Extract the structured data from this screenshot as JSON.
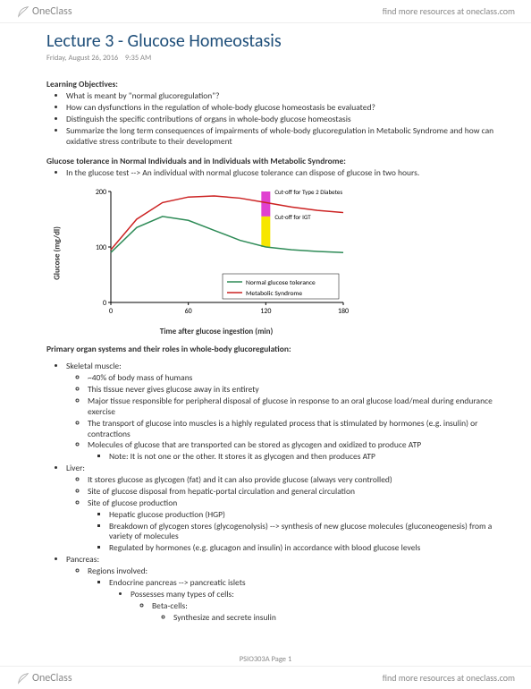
{
  "brand": {
    "name": "OneClass",
    "tagline": "find more resources at oneclass.com"
  },
  "page": {
    "title": "Lecture 3 - Glucose Homeostasis",
    "date": "Friday, August 26, 2016",
    "time": "9:35 AM",
    "footer_page": "PSIO303A Page 1"
  },
  "objectives": {
    "heading": "Learning Objectives:",
    "items": [
      "What is meant by \"normal glucoregulation\"?",
      "How can dysfunctions in the regulation of whole-body glucose homeostasis be evaluated?",
      "Distinguish the specific contributions of organs in whole-body glucose homeostasis",
      "Summarize the long term consequences of impairments of whole-body glucoregulation in Metabolic Syndrome and how can oxidative stress contribute to their development"
    ]
  },
  "tolerance": {
    "heading": "Glucose tolerance in Normal Individuals and in Individuals with Metabolic Syndrome:",
    "bullet": "In the glucose test --> An individual with normal glucose tolerance can dispose of glucose in two hours."
  },
  "chart": {
    "type": "line",
    "xlabel": "Time after glucose ingestion (min)",
    "ylabel": "Glucose (mg/dl)",
    "xlim": [
      0,
      180
    ],
    "ylim": [
      0,
      200
    ],
    "xticks": [
      0,
      60,
      120,
      180
    ],
    "yticks": [
      0,
      100,
      200
    ],
    "background_color": "#ffffff",
    "axis_color": "#000000",
    "tick_fontsize": 8,
    "label_fontsize": 9,
    "series": [
      {
        "name": "Normal glucose tolerance",
        "color": "#2e8b57",
        "linewidth": 1.5,
        "x": [
          0,
          20,
          40,
          60,
          80,
          100,
          120,
          140,
          160,
          180
        ],
        "y": [
          90,
          135,
          155,
          148,
          130,
          112,
          100,
          95,
          92,
          90
        ]
      },
      {
        "name": "Metabolic Syndrome",
        "color": "#cc2222",
        "linewidth": 1.5,
        "x": [
          0,
          20,
          40,
          60,
          80,
          100,
          120,
          140,
          160,
          180
        ],
        "y": [
          95,
          150,
          180,
          190,
          192,
          188,
          180,
          172,
          166,
          162
        ]
      }
    ],
    "bars": [
      {
        "label": "Cut-off for Type 2 Diabetes",
        "x": 120,
        "y0": 155,
        "y1": 200,
        "width": 10,
        "color": "#e040d0",
        "label_fontsize": 7,
        "label_color": "#000000"
      },
      {
        "label": "Cut-off for IGT",
        "x": 120,
        "y0": 100,
        "y1": 155,
        "width": 10,
        "color": "#f7e600",
        "label_fontsize": 7,
        "label_color": "#000000"
      }
    ],
    "legend": {
      "fontsize": 7.5,
      "position": "inside-lower-right",
      "border_color": "#000000"
    }
  },
  "organs": {
    "heading": "Primary organ systems and their roles in whole-body glucoregulation:",
    "skeletal": {
      "label": "Skeletal muscle:",
      "items": [
        "~40% of body mass of humans",
        "This tissue never gives glucose away in its entirety",
        "Major tissue responsible for peripheral disposal of glucose in response to an oral glucose load/meal during endurance exercise",
        "The transport of glucose into muscles is a highly regulated process that is stimulated by hormones (e.g. insulin) or contractions",
        "Molecules of glucose that are transported can be stored as glycogen and oxidized to produce ATP"
      ],
      "note": "Note: It is not one or the other. It stores it as glycogen and then produces ATP"
    },
    "liver": {
      "label": "Liver:",
      "items": [
        "It stores glucose as glycogen (fat) and it can also provide glucose (always very controlled)",
        "Site of glucose disposal from hepatic-portal circulation and general circulation",
        "Site of glucose production"
      ],
      "sub": [
        "Hepatic glucose production (HGP)",
        "Breakdown of glycogen stores (glycogenolysis) --> synthesis of new glucose molecules (gluconeogenesis) from a variety of molecules",
        "Regulated by hormones (e.g. glucagon and insulin) in accordance with blood glucose levels"
      ]
    },
    "pancreas": {
      "label": "Pancreas:",
      "regions": "Regions involved:",
      "endocrine": "Endocrine pancreas --> pancreatic islets",
      "possesses": "Possesses many types of cells:",
      "beta": "Beta-cells:",
      "beta_fn": "Synthesize and secrete insulin"
    }
  }
}
